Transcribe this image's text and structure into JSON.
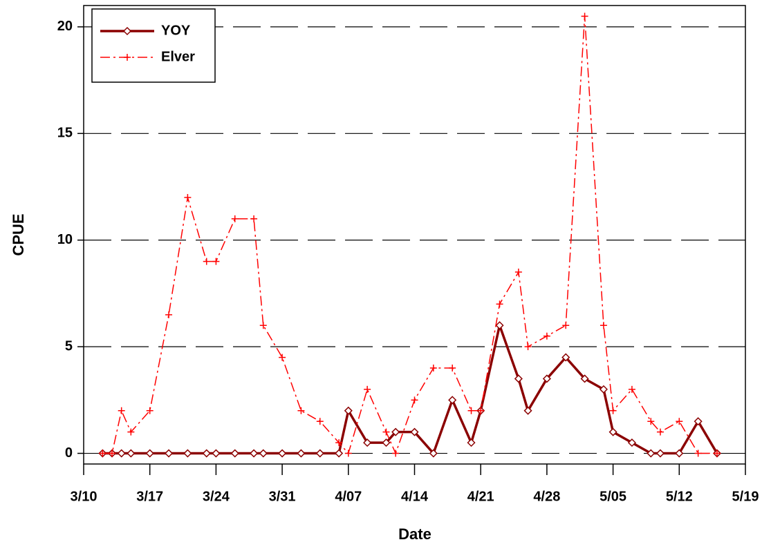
{
  "chart_data": {
    "type": "line",
    "x_label": "Date",
    "y_label": "CPUE",
    "x": [
      "3/12",
      "3/13",
      "3/14",
      "3/15",
      "3/17",
      "3/19",
      "3/21",
      "3/23",
      "3/24",
      "3/26",
      "3/28",
      "3/29",
      "3/31",
      "4/02",
      "4/04",
      "4/06",
      "4/07",
      "4/09",
      "4/11",
      "4/12",
      "4/14",
      "4/16",
      "4/18",
      "4/20",
      "4/21",
      "4/23",
      "4/25",
      "4/26",
      "4/28",
      "4/30",
      "5/02",
      "5/04",
      "5/05",
      "5/07",
      "5/09",
      "5/10",
      "5/12",
      "5/14",
      "5/16"
    ],
    "series": [
      {
        "name": "YOY",
        "color": "#8b0000",
        "values": [
          0,
          0,
          0,
          0,
          0,
          0,
          0,
          0,
          0,
          0,
          0,
          0,
          0,
          0,
          0,
          0,
          2,
          0.5,
          0.5,
          1,
          1,
          0,
          2.5,
          0.5,
          2,
          6,
          3.5,
          2,
          3.5,
          4.5,
          3.5,
          3,
          1,
          0.5,
          0,
          0,
          0,
          1.5,
          0
        ]
      },
      {
        "name": "Elver",
        "color": "#ff0000",
        "values": [
          0,
          0,
          2,
          1,
          2,
          6.5,
          12,
          9,
          9,
          11,
          11,
          6,
          4.5,
          2,
          1.5,
          0.5,
          0,
          3,
          1,
          0,
          2.5,
          4,
          4,
          2,
          2,
          7,
          8.5,
          5,
          5.5,
          6,
          20.5,
          6,
          2,
          3,
          1.5,
          1,
          1.5,
          0,
          0
        ]
      }
    ],
    "xlim": [
      "3/10",
      "5/19"
    ],
    "xticks": [
      "3/10",
      "3/17",
      "3/24",
      "3/31",
      "4/07",
      "4/14",
      "4/21",
      "4/28",
      "5/05",
      "5/12",
      "5/19"
    ],
    "ylim": [
      -0.5,
      21
    ],
    "yticks": [
      0,
      5,
      10,
      15,
      20
    ],
    "grid": true,
    "legend": "upper-left"
  }
}
